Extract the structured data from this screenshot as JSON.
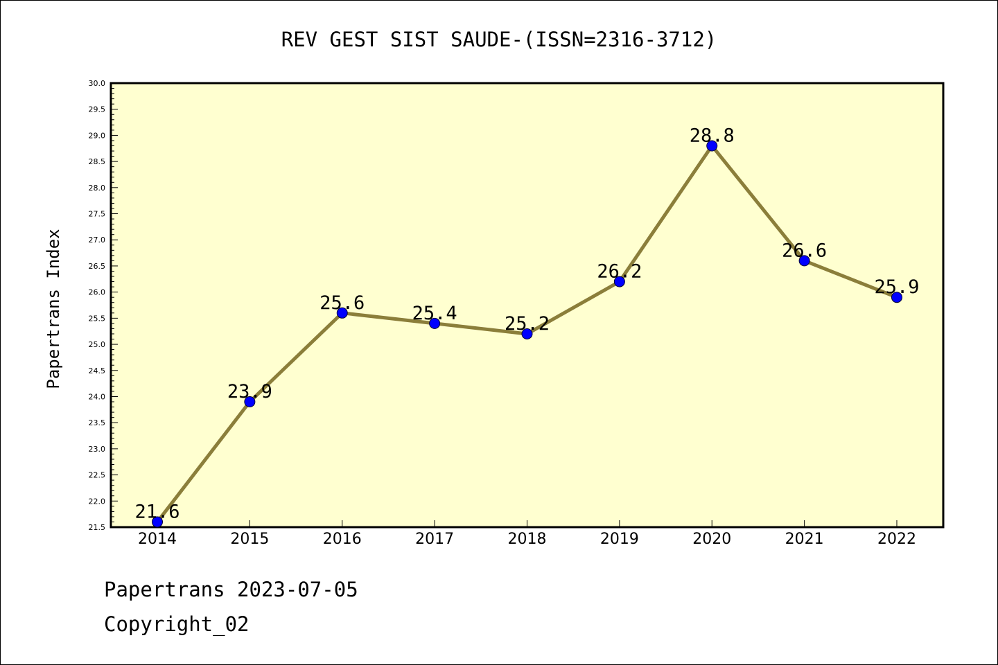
{
  "chart_data": {
    "type": "line",
    "title": "REV GEST SIST SAUDE-(ISSN=2316-3712)",
    "xlabel": "",
    "ylabel": "Papertrans Index",
    "categories": [
      "2014",
      "2015",
      "2016",
      "2017",
      "2018",
      "2019",
      "2020",
      "2021",
      "2022"
    ],
    "values": [
      21.6,
      23.9,
      25.6,
      25.4,
      25.2,
      26.2,
      28.8,
      26.6,
      25.9
    ],
    "data_labels": [
      "21.6",
      "23.9",
      "25.6",
      "25.4",
      "25.2",
      "26.2",
      "28.8",
      "26.6",
      "25.9"
    ],
    "ylim": [
      21.5,
      30.0
    ],
    "y_ticks": [
      "21.5",
      "22.0",
      "22.5",
      "23.0",
      "23.5",
      "24.0",
      "24.5",
      "25.0",
      "25.5",
      "26.0",
      "26.5",
      "27.0",
      "27.5",
      "28.0",
      "28.5",
      "29.0",
      "29.5",
      "30.0"
    ],
    "grid": false,
    "colors": {
      "plot_background": "#ffffd0",
      "line": "#8b7e3a",
      "marker": "#0000ff"
    }
  },
  "footer": {
    "date_line": "Papertrans 2023-07-05",
    "copyright": "Copyright_02"
  }
}
